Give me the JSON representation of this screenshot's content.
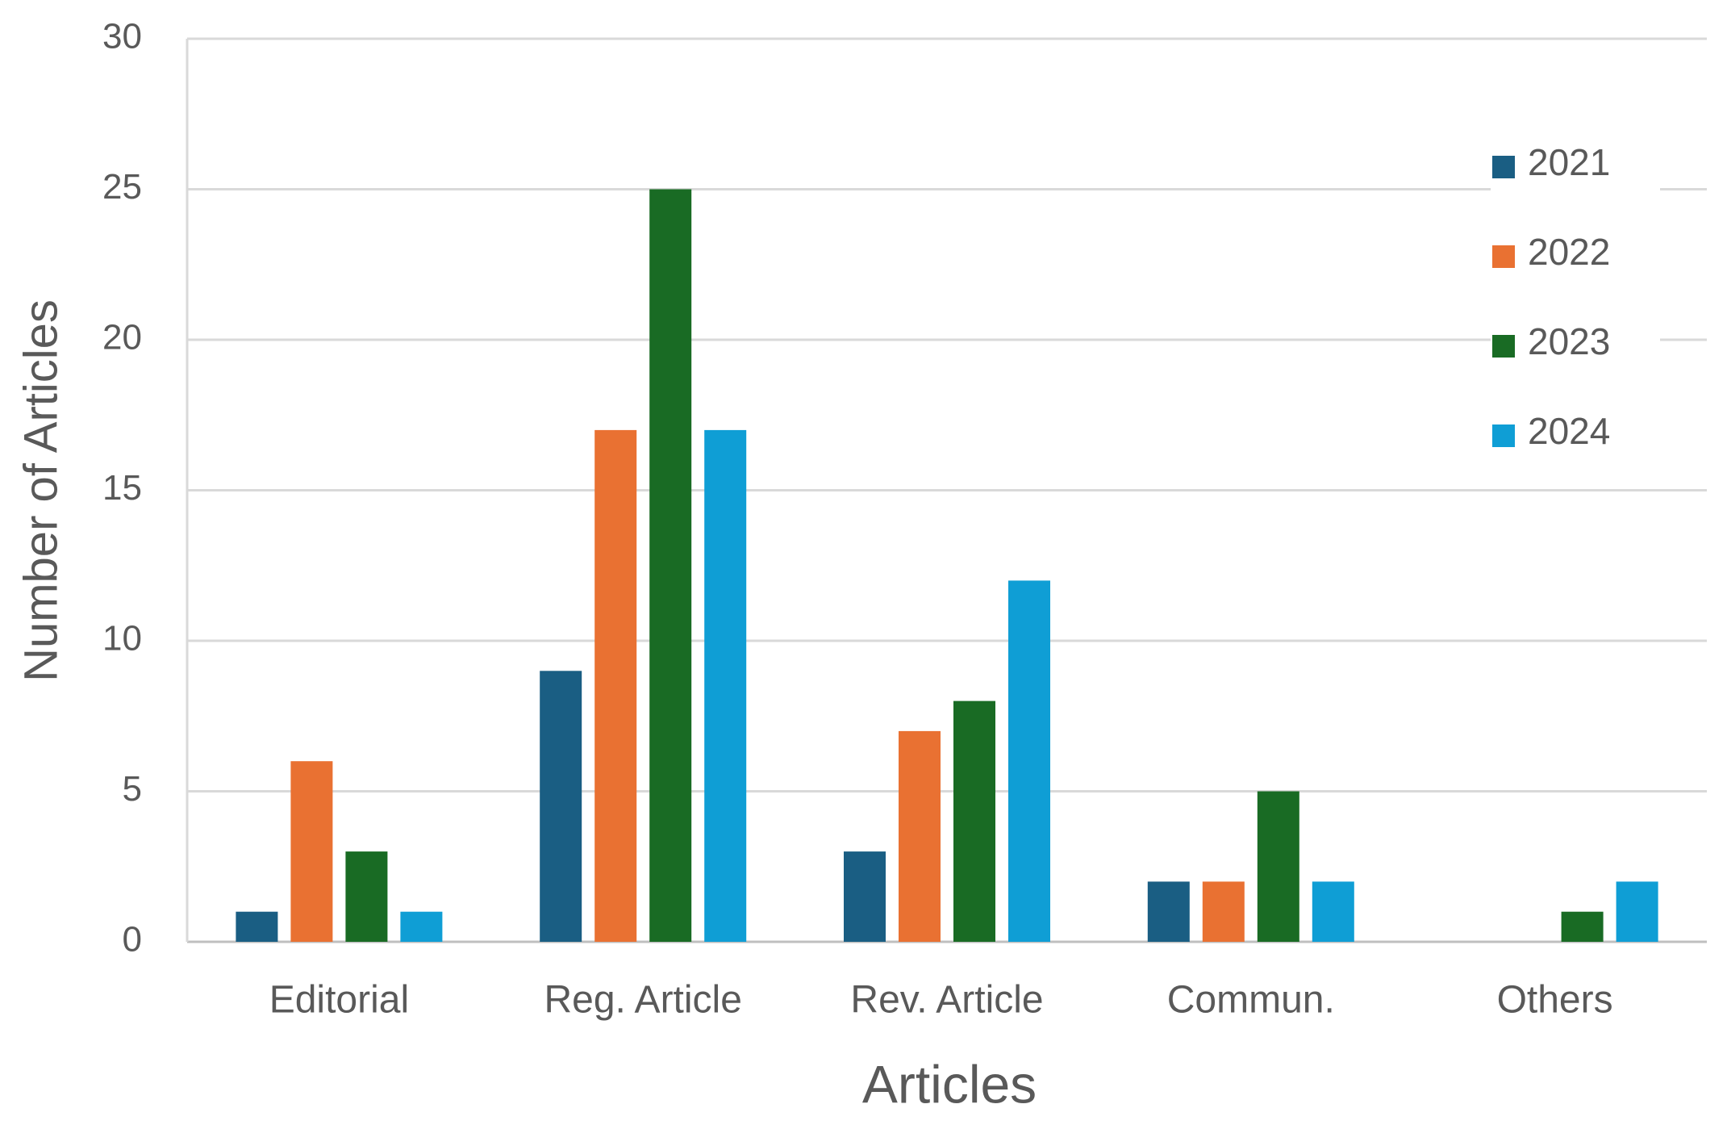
{
  "chart_data": {
    "type": "bar",
    "x_label": "Articles",
    "y_label": "Number of Articles",
    "categories": [
      "Editorial",
      "Reg. Article",
      "Rev. Article",
      "Commun.",
      "Others"
    ],
    "series": [
      {
        "name": "2021",
        "color": "#1a5e83",
        "values": [
          1,
          9,
          3,
          2,
          0
        ]
      },
      {
        "name": "2022",
        "color": "#e97132",
        "values": [
          6,
          17,
          7,
          2,
          0
        ]
      },
      {
        "name": "2023",
        "color": "#196b24",
        "values": [
          3,
          25,
          8,
          5,
          1
        ]
      },
      {
        "name": "2024",
        "color": "#0f9ed5",
        "values": [
          1,
          17,
          12,
          2,
          2
        ]
      }
    ],
    "ylim": [
      0,
      30
    ],
    "yticks": [
      0,
      5,
      10,
      15,
      20,
      25,
      30
    ],
    "grid": true,
    "legend": "right"
  }
}
